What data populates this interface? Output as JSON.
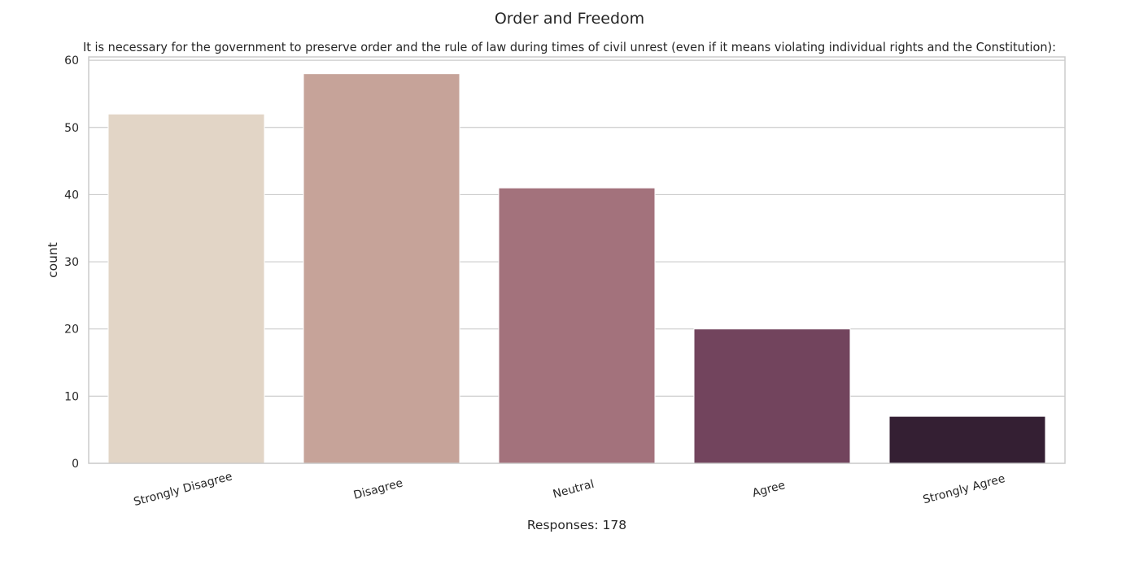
{
  "chart_data": {
    "type": "bar",
    "suptitle": "Order and Freedom",
    "title": "It is necessary for the government to preserve order and the rule of law during times of civil unrest (even if it means violating individual rights and the Constitution):",
    "xlabel": "Responses: 178",
    "ylabel": "count",
    "categories": [
      "Strongly Disagree",
      "Disagree",
      "Neutral",
      "Agree",
      "Strongly Agree"
    ],
    "values": [
      52,
      58,
      41,
      20,
      7
    ],
    "colors": [
      "#e2d5c6",
      "#c6a399",
      "#a3727c",
      "#72445d",
      "#341f33"
    ],
    "ylim": [
      0,
      60.5
    ],
    "yticks": [
      0,
      10,
      20,
      30,
      40,
      50,
      60
    ],
    "grid": true,
    "legend": "none"
  }
}
